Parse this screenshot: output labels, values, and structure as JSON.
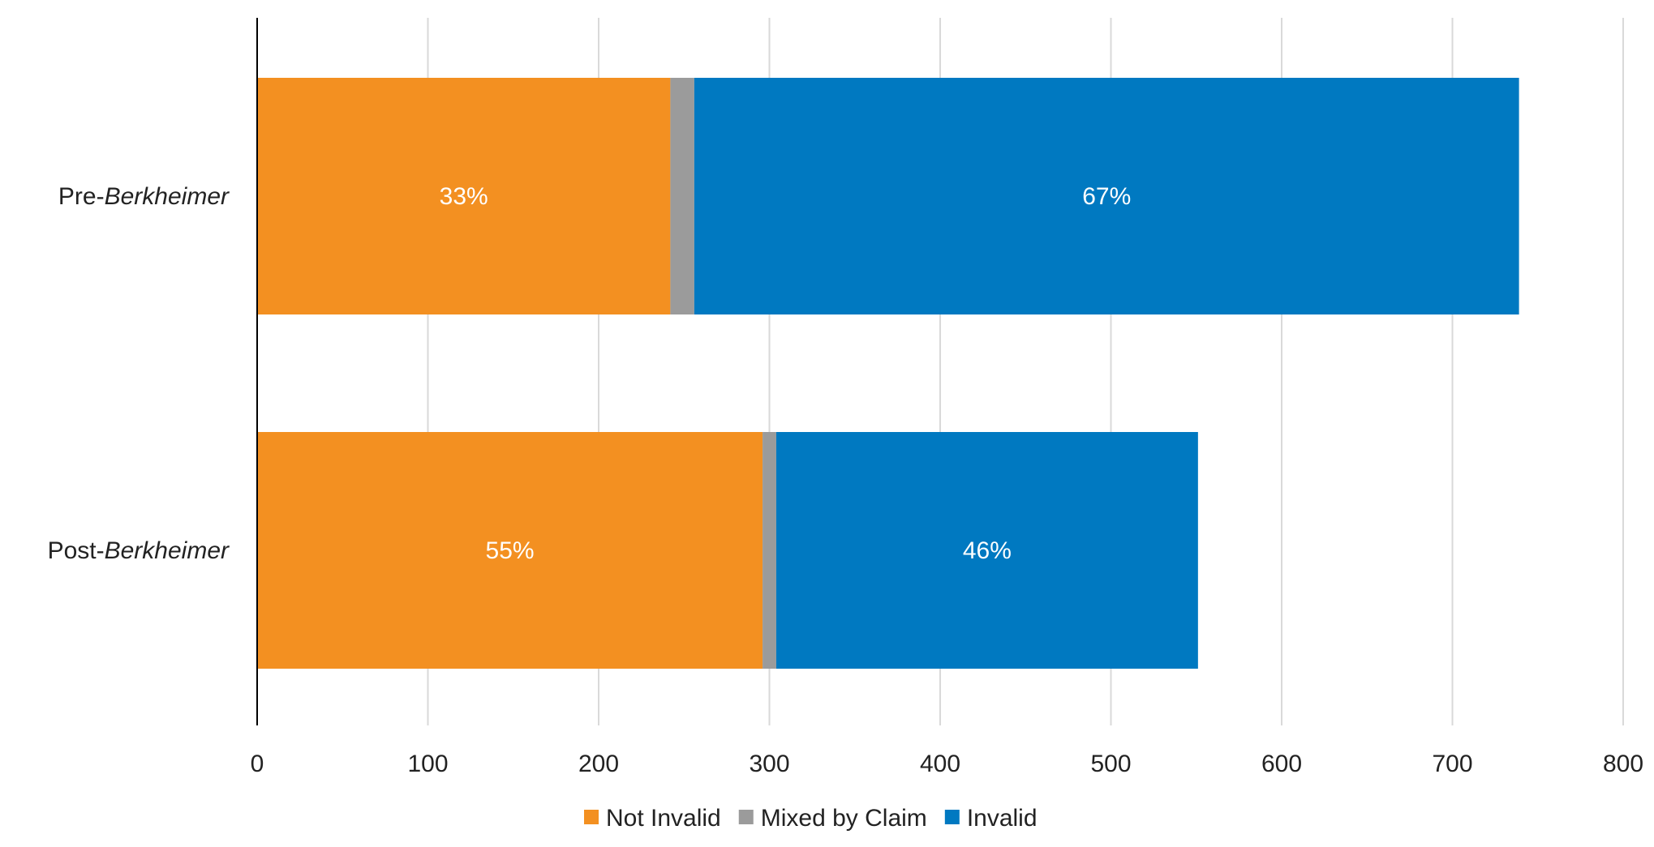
{
  "chart_data": {
    "type": "bar",
    "orientation": "horizontal",
    "stacked": true,
    "categories": [
      {
        "prefix": "Pre-",
        "italic": "Berkheimer"
      },
      {
        "prefix": "Post-",
        "italic": "Berkheimer"
      }
    ],
    "series": [
      {
        "name": "Not Invalid",
        "color": "#F39021",
        "values": [
          242,
          296
        ],
        "labels": [
          "33%",
          "55%"
        ]
      },
      {
        "name": "Mixed by Claim",
        "color": "#9B9B9B",
        "values": [
          14,
          8
        ],
        "labels": [
          "",
          ""
        ]
      },
      {
        "name": "Invalid",
        "color": "#0079C1",
        "values": [
          483,
          247
        ],
        "labels": [
          "67%",
          "46%"
        ]
      }
    ],
    "xlim": [
      0,
      800
    ],
    "xticks": [
      "0",
      "100",
      "200",
      "300",
      "400",
      "500",
      "600",
      "700",
      "800"
    ],
    "grid": true,
    "legend_position": "bottom"
  }
}
